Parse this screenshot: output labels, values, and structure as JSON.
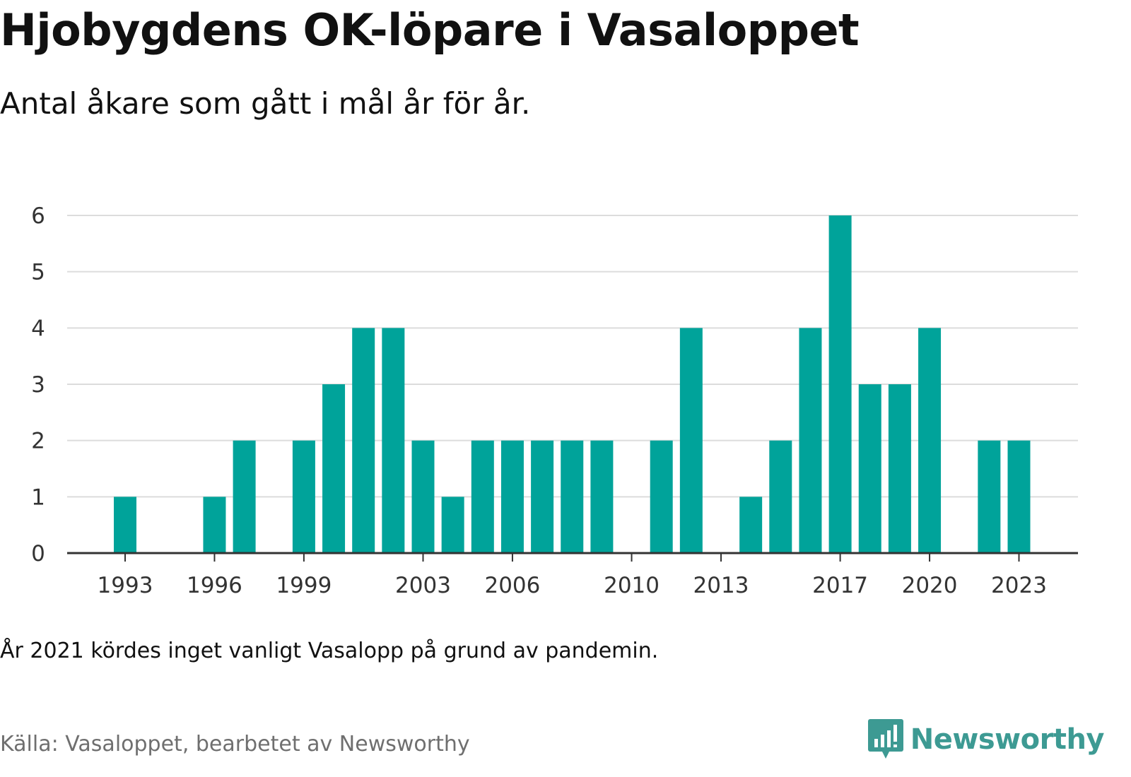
{
  "title": "Hjobygdens OK-löpare i Vasaloppet",
  "subtitle": "Antal åkare som gått i mål år för år.",
  "note": "År 2021 kördes inget vanligt Vasalopp på grund av pandemin.",
  "source": "Källa: Vasaloppet, bearbetet av Newsworthy",
  "brand": {
    "name": "Newsworthy",
    "icon": "bar-chart-speech-bubble-icon"
  },
  "colors": {
    "bar": "#00a39a",
    "grid": "#dcdcdc",
    "axis": "#333333",
    "brand": "#3d9a93"
  },
  "chart_data": {
    "type": "bar",
    "title": "Hjobygdens OK-löpare i Vasaloppet",
    "subtitle": "Antal åkare som gått i mål år för år.",
    "xlabel": "",
    "ylabel": "",
    "ylim": [
      0,
      6
    ],
    "yticks": [
      0,
      1,
      2,
      3,
      4,
      5,
      6
    ],
    "xticks": [
      1993,
      1996,
      1999,
      2003,
      2006,
      2010,
      2013,
      2017,
      2020,
      2023
    ],
    "grid": true,
    "legend": "none",
    "categories": [
      1993,
      1994,
      1995,
      1996,
      1997,
      1998,
      1999,
      2000,
      2001,
      2002,
      2003,
      2004,
      2005,
      2006,
      2007,
      2008,
      2009,
      2010,
      2011,
      2012,
      2013,
      2014,
      2015,
      2016,
      2017,
      2018,
      2019,
      2020,
      2021,
      2022,
      2023
    ],
    "values": [
      1,
      0,
      0,
      1,
      2,
      0,
      2,
      3,
      4,
      4,
      2,
      1,
      2,
      2,
      2,
      2,
      2,
      0,
      2,
      4,
      0,
      1,
      2,
      4,
      6,
      3,
      3,
      4,
      0,
      2,
      2
    ]
  }
}
